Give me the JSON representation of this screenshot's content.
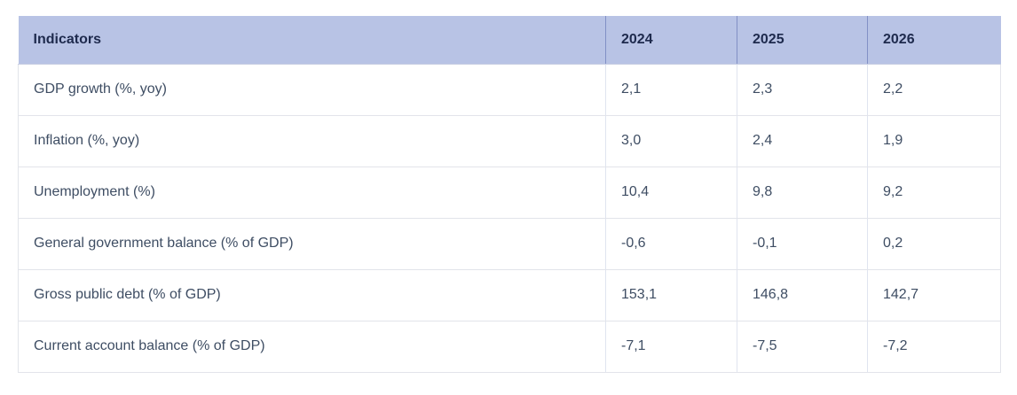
{
  "table": {
    "columns": [
      "Indicators",
      "2024",
      "2025",
      "2026"
    ],
    "rows": [
      {
        "label": "GDP growth (%, yoy)",
        "values": [
          "2,1",
          "2,3",
          "2,2"
        ]
      },
      {
        "label": "Inflation (%, yoy)",
        "values": [
          "3,0",
          "2,4",
          "1,9"
        ]
      },
      {
        "label": "Unemployment (%)",
        "values": [
          "10,4",
          "9,8",
          "9,2"
        ]
      },
      {
        "label": "General government balance (% of GDP)",
        "values": [
          "-0,6",
          "-0,1",
          "0,2"
        ]
      },
      {
        "label": "Gross public debt (% of GDP)",
        "values": [
          "153,1",
          "146,8",
          "142,7"
        ]
      },
      {
        "label": "Current account balance (% of GDP)",
        "values": [
          "-7,1",
          "-7,5",
          "-7,2"
        ]
      }
    ],
    "colors": {
      "header_bg": "#b8c3e5",
      "header_text": "#1e2a4d",
      "header_divider": "#8290c5",
      "body_text": "#3e4d63",
      "body_border": "#e2e4ea"
    }
  },
  "chart_data": {
    "type": "table",
    "title": "",
    "columns": [
      "Indicators",
      "2024",
      "2025",
      "2026"
    ],
    "decimal_separator": ",",
    "rows": [
      {
        "indicator": "GDP growth (%, yoy)",
        "values": [
          2.1,
          2.3,
          2.2
        ]
      },
      {
        "indicator": "Inflation (%, yoy)",
        "values": [
          3.0,
          2.4,
          1.9
        ]
      },
      {
        "indicator": "Unemployment (%)",
        "values": [
          10.4,
          9.8,
          9.2
        ]
      },
      {
        "indicator": "General government balance (% of GDP)",
        "values": [
          -0.6,
          -0.1,
          0.2
        ]
      },
      {
        "indicator": "Gross public debt (% of GDP)",
        "values": [
          153.1,
          146.8,
          142.7
        ]
      },
      {
        "indicator": "Current account balance (% of GDP)",
        "values": [
          -7.1,
          -7.5,
          -7.2
        ]
      }
    ]
  }
}
